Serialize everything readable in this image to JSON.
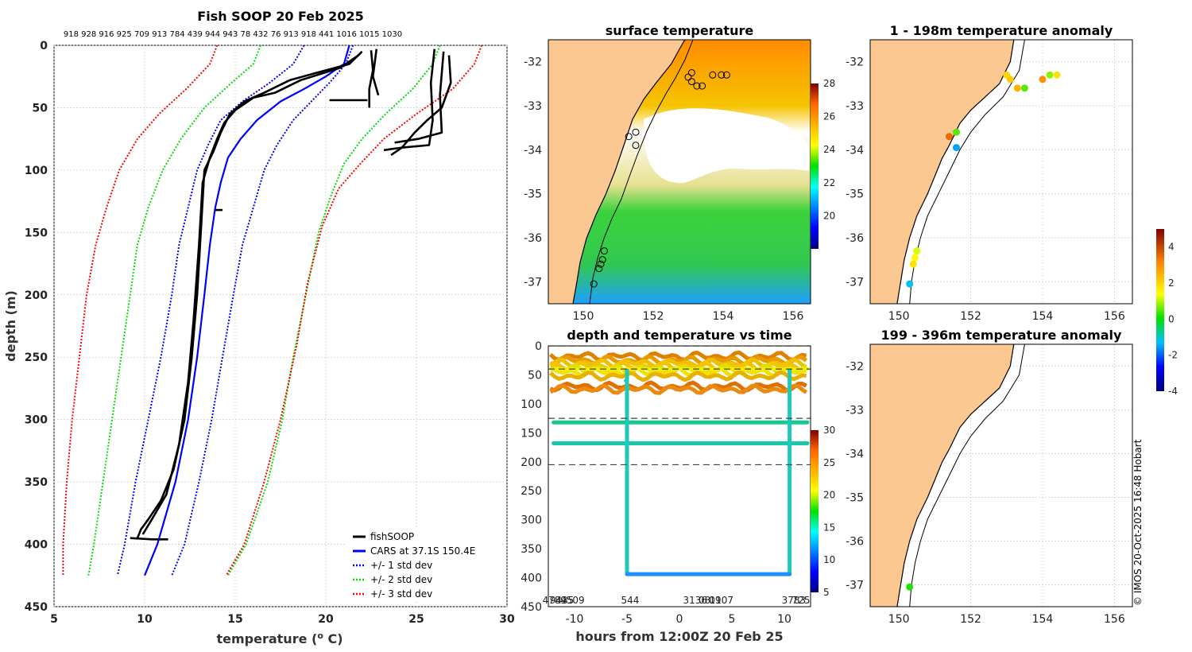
{
  "credit": "© IMOS 20-Oct-2025 16:48 Hobart",
  "chart_data": [
    {
      "id": "profile",
      "type": "line",
      "title": "Fish SOOP 20 Feb 2025",
      "top_labels": "918 928 916 925 709 913 784 439 944 943 78 432 76 913 918 441 1016 1015 1030",
      "xlabel": "temperature (",
      "xlabel_sup": "o",
      "xlabel_tail": " C)",
      "ylabel": "depth (m)",
      "xlim": [
        5,
        30
      ],
      "ylim": [
        450,
        0
      ],
      "xticks": [
        5,
        10,
        15,
        20,
        25,
        30
      ],
      "yticks": [
        0,
        50,
        100,
        150,
        200,
        250,
        300,
        350,
        400,
        450
      ],
      "legend": [
        {
          "label": "fishSOOP",
          "color": "#000000",
          "style": "solid"
        },
        {
          "label": "CARS at 37.1S 150.4E",
          "color": "#0000ff",
          "style": "solid"
        },
        {
          "label": "+/- 1 std dev",
          "color": "#0000ff",
          "style": "dotted"
        },
        {
          "label": "+/- 2 std dev",
          "color": "#00dd00",
          "style": "dotted"
        },
        {
          "label": "+/- 3 std dev",
          "color": "#ff0000",
          "style": "dotted"
        }
      ],
      "series": [
        {
          "name": "CARS at 37.1S 150.4E",
          "color": "#0000ff",
          "style": "solid",
          "points": [
            [
              21.3,
              0
            ],
            [
              21.0,
              15
            ],
            [
              20.0,
              25
            ],
            [
              18.8,
              35
            ],
            [
              17.5,
              45
            ],
            [
              16.2,
              60
            ],
            [
              15.3,
              75
            ],
            [
              14.6,
              90
            ],
            [
              14.2,
              110
            ],
            [
              13.9,
              130
            ],
            [
              13.6,
              160
            ],
            [
              13.3,
              200
            ],
            [
              12.9,
              250
            ],
            [
              12.4,
              300
            ],
            [
              11.7,
              350
            ],
            [
              10.7,
              400
            ],
            [
              10.0,
              425
            ]
          ]
        },
        {
          "name": "+1 std",
          "color": "#0000ff",
          "style": "dotted",
          "points": [
            [
              21.5,
              0
            ],
            [
              21.1,
              15
            ],
            [
              20.2,
              30
            ],
            [
              19.2,
              45
            ],
            [
              18.2,
              60
            ],
            [
              17.3,
              80
            ],
            [
              16.6,
              100
            ],
            [
              16.0,
              130
            ],
            [
              15.4,
              160
            ],
            [
              14.9,
              200
            ],
            [
              14.3,
              250
            ],
            [
              13.7,
              300
            ],
            [
              13.0,
              350
            ],
            [
              12.2,
              400
            ],
            [
              11.5,
              425
            ]
          ]
        },
        {
          "name": "-1 std",
          "color": "#0000ff",
          "style": "dotted",
          "points": [
            [
              18.8,
              0
            ],
            [
              18.2,
              15
            ],
            [
              16.9,
              30
            ],
            [
              15.4,
              45
            ],
            [
              14.2,
              60
            ],
            [
              13.5,
              80
            ],
            [
              12.9,
              100
            ],
            [
              12.4,
              130
            ],
            [
              11.9,
              160
            ],
            [
              11.5,
              200
            ],
            [
              10.9,
              250
            ],
            [
              10.2,
              300
            ],
            [
              9.5,
              350
            ],
            [
              8.9,
              400
            ],
            [
              8.5,
              425
            ]
          ]
        },
        {
          "name": "+2 std",
          "color": "#00dd00",
          "style": "dotted",
          "points": [
            [
              26.3,
              0
            ],
            [
              25.9,
              15
            ],
            [
              24.8,
              35
            ],
            [
              23.3,
              55
            ],
            [
              22.0,
              75
            ],
            [
              21.0,
              95
            ],
            [
              20.3,
              120
            ],
            [
              19.6,
              150
            ],
            [
              18.9,
              200
            ],
            [
              18.2,
              250
            ],
            [
              17.6,
              300
            ],
            [
              16.8,
              350
            ],
            [
              15.6,
              400
            ],
            [
              14.6,
              425
            ]
          ]
        },
        {
          "name": "-2 std",
          "color": "#00dd00",
          "style": "dotted",
          "points": [
            [
              16.4,
              0
            ],
            [
              16.0,
              15
            ],
            [
              14.8,
              30
            ],
            [
              13.3,
              50
            ],
            [
              12.0,
              75
            ],
            [
              11.0,
              100
            ],
            [
              10.2,
              130
            ],
            [
              9.6,
              160
            ],
            [
              9.2,
              200
            ],
            [
              8.7,
              250
            ],
            [
              8.2,
              300
            ],
            [
              7.7,
              350
            ],
            [
              7.2,
              400
            ],
            [
              6.9,
              425
            ]
          ]
        },
        {
          "name": "+3 std",
          "color": "#ff0000",
          "style": "dotted",
          "points": [
            [
              28.6,
              0
            ],
            [
              28.2,
              15
            ],
            [
              27.0,
              35
            ],
            [
              25.0,
              55
            ],
            [
              23.2,
              75
            ],
            [
              21.9,
              95
            ],
            [
              20.7,
              115
            ],
            [
              19.8,
              145
            ],
            [
              19.0,
              190
            ],
            [
              18.4,
              240
            ],
            [
              17.5,
              300
            ],
            [
              16.6,
              350
            ],
            [
              15.5,
              400
            ],
            [
              14.5,
              425
            ]
          ]
        },
        {
          "name": "-3 std",
          "color": "#ff0000",
          "style": "dotted",
          "points": [
            [
              14.0,
              0
            ],
            [
              13.6,
              15
            ],
            [
              12.3,
              35
            ],
            [
              10.8,
              55
            ],
            [
              9.6,
              75
            ],
            [
              8.6,
              100
            ],
            [
              7.9,
              130
            ],
            [
              7.3,
              160
            ],
            [
              6.8,
              200
            ],
            [
              6.4,
              250
            ],
            [
              6.0,
              300
            ],
            [
              5.7,
              350
            ],
            [
              5.5,
              400
            ],
            [
              5.5,
              425
            ]
          ]
        }
      ],
      "fishsoop": [
        [
          [
            22.0,
            5
          ],
          [
            21.3,
            15
          ],
          [
            19.5,
            22
          ],
          [
            18.0,
            28
          ],
          [
            16.6,
            38
          ],
          [
            15.5,
            45
          ],
          [
            14.7,
            55
          ],
          [
            14.2,
            70
          ],
          [
            13.8,
            85
          ],
          [
            13.3,
            100
          ],
          [
            13.1,
            150
          ],
          [
            12.9,
            200
          ],
          [
            12.6,
            250
          ],
          [
            12.2,
            300
          ],
          [
            11.6,
            340
          ],
          [
            10.9,
            365
          ],
          [
            10.2,
            380
          ],
          [
            9.8,
            388
          ],
          [
            9.6,
            395
          ]
        ],
        [
          [
            21.8,
            8
          ],
          [
            20.8,
            18
          ],
          [
            18.6,
            28
          ],
          [
            17.2,
            38
          ],
          [
            16.0,
            42
          ],
          [
            15.0,
            52
          ],
          [
            14.4,
            62
          ],
          [
            14.0,
            75
          ],
          [
            13.6,
            90
          ],
          [
            13.2,
            110
          ],
          [
            13.0,
            160
          ],
          [
            12.7,
            220
          ],
          [
            12.4,
            270
          ],
          [
            11.9,
            320
          ],
          [
            11.2,
            360
          ],
          [
            10.4,
            380
          ],
          [
            9.9,
            392
          ]
        ],
        [
          [
            22.5,
            4
          ],
          [
            22.6,
            20
          ],
          [
            22.4,
            35
          ],
          [
            22.4,
            50
          ]
        ],
        [
          [
            22.8,
            3
          ],
          [
            22.6,
            25
          ],
          [
            22.9,
            40
          ]
        ],
        [
          [
            26.0,
            3
          ],
          [
            25.8,
            30
          ],
          [
            25.9,
            60
          ],
          [
            25.7,
            80
          ],
          [
            24.2,
            82
          ],
          [
            23.2,
            84
          ]
        ],
        [
          [
            26.5,
            5
          ],
          [
            26.3,
            40
          ],
          [
            26.4,
            70
          ],
          [
            25.1,
            75
          ],
          [
            23.8,
            78
          ]
        ],
        [
          [
            26.8,
            8
          ],
          [
            26.9,
            30
          ],
          [
            26.4,
            50
          ],
          [
            25.6,
            60
          ],
          [
            24.9,
            70
          ],
          [
            24.2,
            82
          ],
          [
            23.6,
            88
          ]
        ],
        [
          [
            9.2,
            395
          ],
          [
            10.4,
            396
          ],
          [
            11.3,
            396
          ]
        ],
        [
          [
            20.2,
            44
          ],
          [
            21.8,
            44
          ],
          [
            22.3,
            44
          ]
        ],
        [
          [
            13.9,
            132
          ],
          [
            14.3,
            132
          ]
        ]
      ]
    },
    {
      "id": "sst",
      "type": "heatmap",
      "title": "surface temperature",
      "xlim": [
        149,
        156.5
      ],
      "ylim": [
        -37.5,
        -31.5
      ],
      "xticks": [
        150,
        152,
        154,
        156
      ],
      "yticks": [
        -32,
        -33,
        -34,
        -35,
        -36,
        -37
      ],
      "colorbar": {
        "min": 18,
        "max": 28,
        "ticks": [
          20,
          22,
          24,
          26,
          28
        ]
      },
      "markers": [
        [
          153.0,
          -32.35
        ],
        [
          153.1,
          -32.45
        ],
        [
          153.25,
          -32.55
        ],
        [
          153.4,
          -32.55
        ],
        [
          153.1,
          -32.25
        ],
        [
          153.7,
          -32.3
        ],
        [
          153.95,
          -32.3
        ],
        [
          154.1,
          -32.3
        ],
        [
          151.3,
          -33.7
        ],
        [
          151.5,
          -33.6
        ],
        [
          151.5,
          -33.9
        ],
        [
          150.6,
          -36.3
        ],
        [
          150.55,
          -36.5
        ],
        [
          150.5,
          -36.6
        ],
        [
          150.45,
          -36.7
        ],
        [
          150.3,
          -37.05
        ]
      ]
    },
    {
      "id": "anom1",
      "type": "scatter",
      "title": "1 - 198m temperature anomaly",
      "xlim": [
        149.2,
        156.5
      ],
      "ylim": [
        -37.5,
        -31.5
      ],
      "xticks": [
        150,
        152,
        154,
        156
      ],
      "yticks": [
        -32,
        -33,
        -34,
        -35,
        -36,
        -37
      ],
      "points": [
        [
          153.0,
          -32.3,
          2.0
        ],
        [
          153.1,
          -32.4,
          2.2
        ],
        [
          153.3,
          -32.6,
          2.5
        ],
        [
          153.5,
          -32.6,
          0.5
        ],
        [
          154.0,
          -32.4,
          3.0
        ],
        [
          154.2,
          -32.3,
          0.8
        ],
        [
          154.4,
          -32.3,
          1.8
        ],
        [
          151.4,
          -33.7,
          3.5
        ],
        [
          151.6,
          -33.6,
          0.5
        ],
        [
          151.6,
          -33.95,
          -1.5
        ],
        [
          150.5,
          -36.3,
          1.2
        ],
        [
          150.45,
          -36.45,
          1.5
        ],
        [
          150.4,
          -36.6,
          1.8
        ],
        [
          150.3,
          -37.05,
          -1.2
        ]
      ]
    },
    {
      "id": "anom2",
      "type": "scatter",
      "title": "199 - 396m temperature anomaly",
      "xlim": [
        149.2,
        156.5
      ],
      "ylim": [
        -37.5,
        -31.5
      ],
      "xticks": [
        150,
        152,
        154,
        156
      ],
      "yticks": [
        -32,
        -33,
        -34,
        -35,
        -36,
        -37
      ],
      "points": [
        [
          150.3,
          -37.05,
          0.2
        ]
      ],
      "colorbar": {
        "min": -4,
        "max": 5,
        "ticks": [
          4,
          2,
          0,
          -2,
          -4
        ]
      }
    },
    {
      "id": "timeseries",
      "type": "scatter",
      "title": "depth and temperature vs time",
      "xlabel": "hours from 12:00Z 20 Feb 25",
      "xlim": [
        -12.5,
        12.5
      ],
      "ylim": [
        450,
        0
      ],
      "xticks": [
        -10,
        -5,
        0,
        5,
        10
      ],
      "yticks": [
        0,
        50,
        100,
        150,
        200,
        250,
        300,
        350,
        400,
        450
      ],
      "reference_depths": [
        0,
        40,
        125,
        205
      ],
      "colorbar": {
        "min": 5,
        "max": 30,
        "ticks": [
          30,
          25,
          20,
          15,
          10,
          5
        ]
      },
      "bottom_labels": [
        {
          "x": -11.9,
          "text": "4784"
        },
        {
          "x": -11.2,
          "text": "9435"
        },
        {
          "x": -10.2,
          "text": "9509"
        },
        {
          "x": -4.7,
          "text": "544"
        },
        {
          "x": 1.5,
          "text": "3136"
        },
        {
          "x": 2.4,
          "text": "08"
        },
        {
          "x": 3.4,
          "text": "09"
        },
        {
          "x": 4.0,
          "text": "1107"
        },
        {
          "x": 10.9,
          "text": "3783"
        },
        {
          "x": 11.6,
          "text": "725"
        }
      ]
    }
  ]
}
